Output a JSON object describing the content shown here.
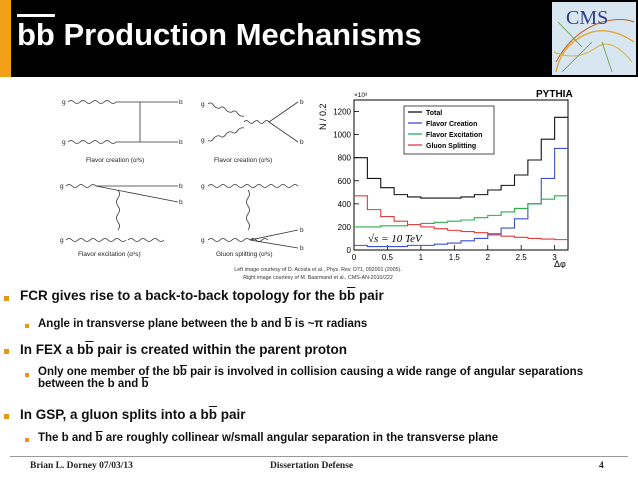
{
  "title": {
    "bb": "bb",
    "rest": " Production Mechanisms"
  },
  "logo": {
    "text": "CMS"
  },
  "diagrams": {
    "flavor_creation": "Flavor creation (α³s)",
    "flavor_creation_2": "Flavor creation (α³s)",
    "flavor_excitation": "Flavor excitation (α³s)",
    "gluon_splitting": "Gluon splitting (α³s)",
    "g": "g",
    "b": "b"
  },
  "credits": {
    "line1": "Left image courtesy of D. Acosta et al., Phys. Rev. D71, 092001 (2005).",
    "line2": "Right image courtesy of M. Baarmand et al., CMS-AN-2010/222"
  },
  "chart_data": {
    "type": "line",
    "title": "PYTHIA",
    "xlabel": "Δφ",
    "ylabel": "N / 0.2",
    "y_multiplier": "×10³",
    "annotation": "√s = 10 TeV",
    "xlim": [
      0,
      3.2
    ],
    "ylim": [
      0,
      1300
    ],
    "x_ticks": [
      "0",
      "0.5",
      "1",
      "1.5",
      "2",
      "2.5",
      "3"
    ],
    "y_ticks": [
      "0",
      "200",
      "400",
      "600",
      "800",
      "1000",
      "1200"
    ],
    "legend_position": "top-right",
    "x": [
      0.1,
      0.3,
      0.5,
      0.7,
      0.9,
      1.1,
      1.3,
      1.5,
      1.7,
      1.9,
      2.1,
      2.3,
      2.5,
      2.7,
      2.9,
      3.1
    ],
    "series": [
      {
        "name": "Total",
        "color": "#111111",
        "values": [
          800,
          620,
          540,
          480,
          460,
          450,
          450,
          450,
          460,
          480,
          520,
          560,
          650,
          780,
          960,
          1150
        ]
      },
      {
        "name": "Flavor Creation",
        "color": "#3c4fd0",
        "values": [
          40,
          30,
          30,
          30,
          40,
          40,
          50,
          60,
          80,
          100,
          140,
          190,
          270,
          400,
          620,
          880
        ]
      },
      {
        "name": "Flavor Excitation",
        "color": "#29b04a",
        "values": [
          200,
          200,
          210,
          210,
          220,
          230,
          240,
          250,
          260,
          280,
          300,
          330,
          360,
          400,
          440,
          470
        ]
      },
      {
        "name": "Gluon Splitting",
        "color": "#e23b3b",
        "values": [
          470,
          350,
          290,
          250,
          220,
          200,
          185,
          170,
          160,
          150,
          130,
          120,
          110,
          100,
          95,
          90
        ]
      }
    ]
  },
  "bullets": [
    {
      "level": 1,
      "text": "FCR gives rise to a back-to-back topology for the bb pair"
    },
    {
      "level": 2,
      "text": "Angle in transverse plane between the b and b is ~π radians"
    },
    {
      "level": 1,
      "text": "In FEX a bb pair is created within the parent proton"
    },
    {
      "level": 2,
      "text": "Only one member of the bb pair is involved in collision causing a wide range of angular separations between the b and b"
    },
    {
      "level": 1,
      "text": "In GSP, a gluon splits into a bb pair"
    },
    {
      "level": 2,
      "text": "The b and b are roughly collinear w/small angular separation in the transverse plane"
    }
  ],
  "footer": {
    "author": "Brian L. Dorney 07/03/13",
    "center": "Dissertation Defense",
    "page": "4"
  },
  "colors": {
    "accent": "#f2a017",
    "title_bg": "#000000",
    "bullet": "#e8961a"
  }
}
